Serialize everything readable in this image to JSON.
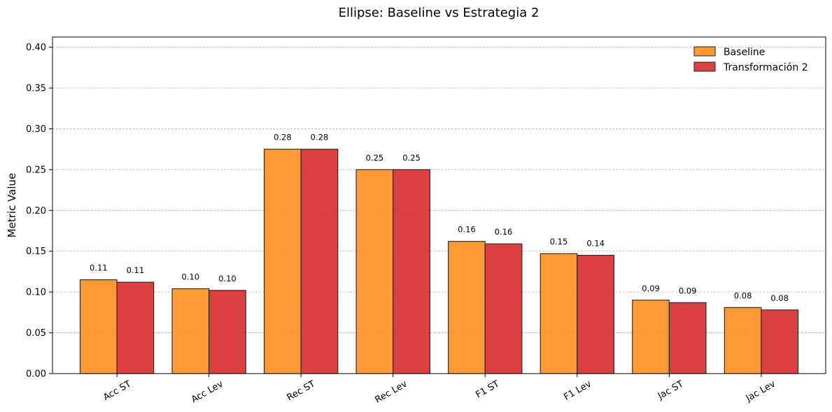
{
  "chart_data": {
    "type": "bar",
    "title": "Ellipse: Baseline vs Estrategia 2",
    "xlabel": "",
    "ylabel": "Metric Value",
    "categories": [
      "Acc ST",
      "Acc Lev",
      "Rec ST",
      "Rec Lev",
      "F1 ST",
      "F1 Lev",
      "Jac ST",
      "Jac Lev"
    ],
    "series": [
      {
        "name": "Baseline",
        "color": "#ff8c1a",
        "values": [
          0.115,
          0.104,
          0.275,
          0.25,
          0.162,
          0.147,
          0.09,
          0.081
        ],
        "labels": [
          "0.11",
          "0.10",
          "0.28",
          "0.25",
          "0.16",
          "0.15",
          "0.09",
          "0.08"
        ]
      },
      {
        "name": "Transformación 2",
        "color": "#d62728",
        "values": [
          0.112,
          0.102,
          0.275,
          0.25,
          0.159,
          0.145,
          0.087,
          0.078
        ],
        "labels": [
          "0.11",
          "0.10",
          "0.28",
          "0.25",
          "0.16",
          "0.14",
          "0.09",
          "0.08"
        ]
      }
    ],
    "ylim": [
      0,
      0.4125
    ],
    "yticks": [
      "0.00",
      "0.05",
      "0.10",
      "0.15",
      "0.20",
      "0.25",
      "0.30",
      "0.35",
      "0.40"
    ],
    "grid": "horizontal dashed",
    "legend": "top-right",
    "x_tick_rotation": "30 degrees"
  }
}
